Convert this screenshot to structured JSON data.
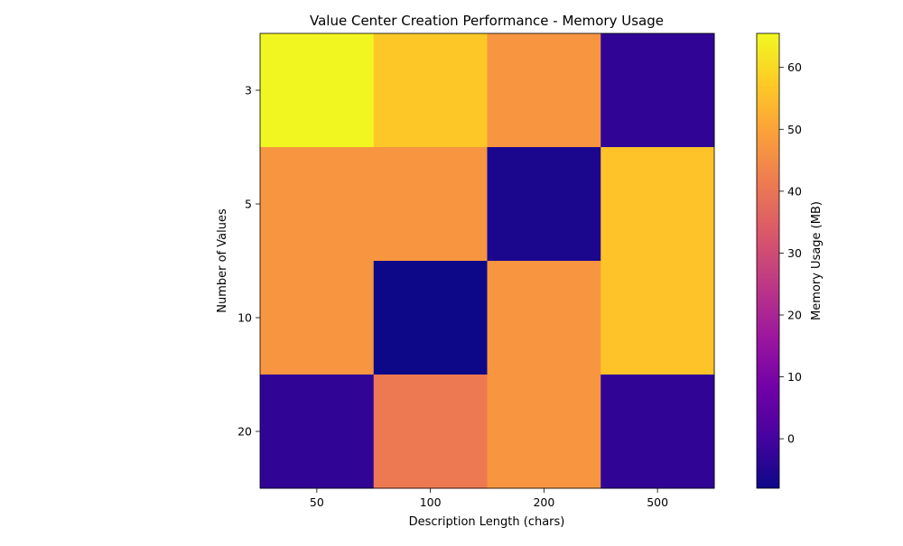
{
  "chart_data": {
    "type": "heatmap",
    "title": "Value Center Creation Performance - Memory Usage",
    "xlabel": "Description Length (chars)",
    "ylabel": "Number of Values",
    "x_categories": [
      "50",
      "100",
      "200",
      "500"
    ],
    "y_categories": [
      "3",
      "5",
      "10",
      "20"
    ],
    "values": [
      [
        65,
        57,
        47,
        -3
      ],
      [
        47,
        47,
        -6,
        56
      ],
      [
        47,
        -8,
        47,
        56
      ],
      [
        -3,
        41,
        47,
        -3
      ]
    ],
    "colorbar": {
      "label": "Memory Usage (MB)",
      "min": -8,
      "max": 65.5,
      "ticks": [
        "0",
        "10",
        "20",
        "30",
        "40",
        "50",
        "60"
      ],
      "tick_values": [
        0,
        10,
        20,
        30,
        40,
        50,
        60
      ]
    },
    "colormap": "plasma",
    "colormap_stops": [
      "#0d0887",
      "#46039f",
      "#7201a8",
      "#9c179e",
      "#bd3786",
      "#d8576b",
      "#ed7953",
      "#fb9f3a",
      "#fdca26",
      "#f0f921"
    ],
    "grid": false
  }
}
